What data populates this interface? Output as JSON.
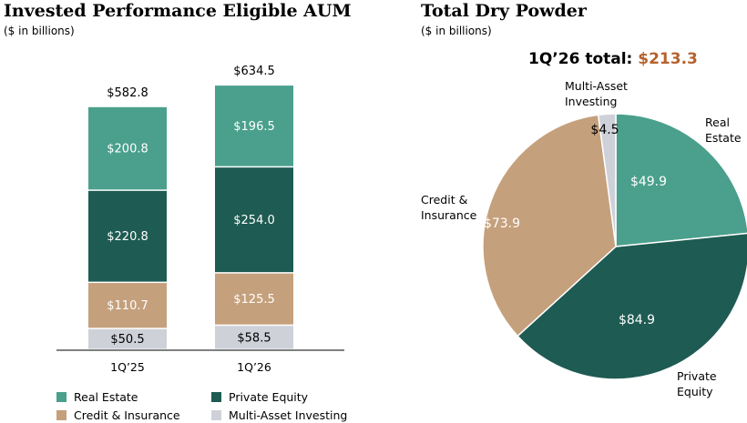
{
  "left": {
    "title": "Invested Performance Eligible AUM",
    "subtitle": "($ in billions)"
  },
  "right": {
    "title": "Total Dry Powder",
    "subtitle": "($ in billions)",
    "total_label": "1Q’26 total:",
    "total_value": "$213.3"
  },
  "colors": {
    "real_estate": "#4aa08c",
    "private_equity": "#1e5b53",
    "credit_insurance": "#c5a07c",
    "multi_asset": "#ced1d8"
  },
  "legend": [
    {
      "label": "Real Estate",
      "color": "#4aa08c"
    },
    {
      "label": "Private Equity",
      "color": "#1e5b53"
    },
    {
      "label": "Credit & Insurance",
      "color": "#c5a07c"
    },
    {
      "label": "Multi-Asset Investing",
      "color": "#ced1d8"
    }
  ],
  "chart_data": [
    {
      "type": "bar",
      "stacked": true,
      "title": "Invested Performance Eligible AUM",
      "subtitle": "($ in billions)",
      "categories": [
        "1Q’25",
        "1Q’26"
      ],
      "totals": [
        582.8,
        634.5
      ],
      "total_labels": [
        "$582.8",
        "$634.5"
      ],
      "series": [
        {
          "name": "Multi-Asset Investing",
          "values": [
            50.5,
            58.5
          ],
          "labels": [
            "$50.5",
            "$58.5"
          ],
          "color": "#ced1d8"
        },
        {
          "name": "Credit & Insurance",
          "values": [
            110.7,
            125.5
          ],
          "labels": [
            "$110.7",
            "$125.5"
          ],
          "color": "#c5a07c"
        },
        {
          "name": "Private Equity",
          "values": [
            220.8,
            254.0
          ],
          "labels": [
            "$220.8",
            "$254.0"
          ],
          "color": "#1e5b53"
        },
        {
          "name": "Real Estate",
          "values": [
            200.8,
            196.5
          ],
          "labels": [
            "$200.8",
            "$196.5"
          ],
          "color": "#4aa08c"
        }
      ],
      "ylim": [
        0,
        650
      ],
      "legend_position": "bottom"
    },
    {
      "type": "pie",
      "title": "Total Dry Powder",
      "subtitle": "($ in billions)",
      "total": 213.3,
      "slices": [
        {
          "name": "Real Estate",
          "value": 49.9,
          "label": "$49.9",
          "category_label": [
            "Real",
            "Estate"
          ],
          "color": "#4aa08c"
        },
        {
          "name": "Private Equity",
          "value": 84.9,
          "label": "$84.9",
          "category_label": [
            "Private",
            "Equity"
          ],
          "color": "#1e5b53"
        },
        {
          "name": "Credit & Insurance",
          "value": 73.9,
          "label": "$73.9",
          "category_label": [
            "Credit &",
            "Insurance"
          ],
          "color": "#c5a07c"
        },
        {
          "name": "Multi-Asset Investing",
          "value": 4.5,
          "label": "$4.5",
          "category_label": [
            "Multi-Asset",
            "Investing"
          ],
          "color": "#ced1d8"
        }
      ]
    }
  ]
}
